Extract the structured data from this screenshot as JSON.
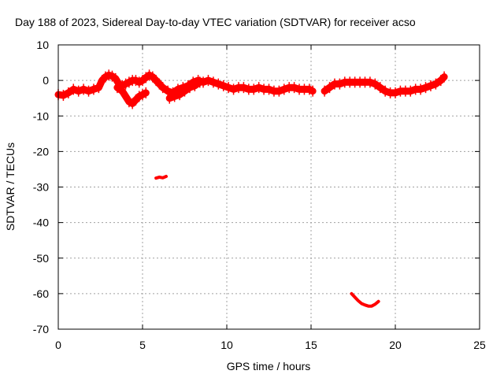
{
  "chart_data": {
    "type": "scatter",
    "title": "Day 188 of 2023, Sidereal Day-to-day VTEC variation (SDTVAR) for receiver acso",
    "xlabel": "GPS time / hours",
    "ylabel": "SDTVAR / TECUs",
    "xlim": [
      0,
      25
    ],
    "ylim": [
      -70,
      10
    ],
    "x_ticks": [
      0,
      5,
      10,
      15,
      20,
      25
    ],
    "y_ticks": [
      10,
      0,
      -10,
      -20,
      -30,
      -40,
      -50,
      -60,
      -70
    ],
    "grid": true,
    "legend": "none",
    "color": "#ff0000",
    "series": [
      {
        "name": "main-track-1",
        "x": [
          0,
          0.3,
          0.6,
          0.9,
          1.2,
          1.5,
          1.8,
          2.1,
          2.4,
          2.6,
          2.8,
          3.0,
          3.2,
          3.4,
          3.6,
          3.8,
          4.0,
          4.2,
          4.4,
          4.6,
          4.8,
          5.0,
          5.2,
          5.4,
          5.6,
          5.8,
          6.0,
          6.2,
          6.5,
          6.8,
          7.1,
          7.4,
          7.7,
          8.0,
          8.3,
          8.6,
          8.9,
          9.2,
          9.5,
          9.8,
          10.1,
          10.4,
          10.7,
          11.0,
          11.3,
          11.6,
          11.9,
          12.2,
          12.5,
          12.8,
          13.1,
          13.4,
          13.7,
          14.0,
          14.3,
          14.6,
          14.9,
          15.1
        ],
        "y": [
          -4,
          -4.2,
          -3.5,
          -2.5,
          -3,
          -2.5,
          -3,
          -2.5,
          -2,
          0,
          1,
          1.5,
          1.2,
          0.5,
          -1,
          -1.5,
          -1,
          -0.5,
          0,
          0,
          -0.5,
          0,
          0.8,
          1.5,
          1,
          0,
          -1,
          -2,
          -3,
          -3.5,
          -2.5,
          -2,
          -1.5,
          -0.5,
          0,
          -0.5,
          0,
          -0.5,
          -1,
          -1.5,
          -2,
          -2.5,
          -2,
          -2,
          -2.5,
          -2.5,
          -2,
          -2.5,
          -2.5,
          -3,
          -3,
          -2.5,
          -2,
          -2,
          -2.5,
          -2.5,
          -2.5,
          -3
        ]
      },
      {
        "name": "main-track-2",
        "x": [
          3.5,
          3.8,
          4.0,
          4.2,
          4.4,
          4.6,
          4.8,
          5.0,
          5.2
        ],
        "y": [
          -2,
          -3,
          -4.5,
          -6,
          -6.5,
          -5.5,
          -4.5,
          -4,
          -3.5
        ]
      },
      {
        "name": "main-track-3",
        "x": [
          6.6,
          6.9,
          7.2,
          7.5,
          7.8,
          8.1,
          8.4
        ],
        "y": [
          -5,
          -4.5,
          -4,
          -3,
          -2,
          -1.5,
          -0.5
        ]
      },
      {
        "name": "main-track-4",
        "x": [
          15.8,
          16.1,
          16.4,
          16.7,
          17.0,
          17.3,
          17.6,
          17.9,
          18.2,
          18.5,
          18.8,
          19.1,
          19.4,
          19.7,
          20.0,
          20.3,
          20.6,
          20.9,
          21.2,
          21.5,
          21.8,
          22.1,
          22.4,
          22.7,
          22.9
        ],
        "y": [
          -3,
          -2,
          -1,
          -1,
          -0.5,
          -0.5,
          -0.5,
          -0.5,
          -0.5,
          -0.5,
          -1,
          -2,
          -3,
          -3.5,
          -3.5,
          -3,
          -3,
          -3,
          -2.5,
          -2.5,
          -2,
          -1.5,
          -1,
          0,
          1
        ]
      },
      {
        "name": "outlier-near-6h",
        "x": [
          5.8,
          6.0,
          6.2,
          6.4
        ],
        "y": [
          -27.5,
          -27.2,
          -27.4,
          -27.0
        ]
      },
      {
        "name": "outlier-near-18h",
        "x": [
          17.4,
          17.6,
          17.8,
          18.0,
          18.2,
          18.4,
          18.6,
          18.8,
          19.0
        ],
        "y": [
          -60,
          -61,
          -62,
          -62.8,
          -63.2,
          -63.5,
          -63.5,
          -63,
          -62.2
        ]
      }
    ]
  }
}
